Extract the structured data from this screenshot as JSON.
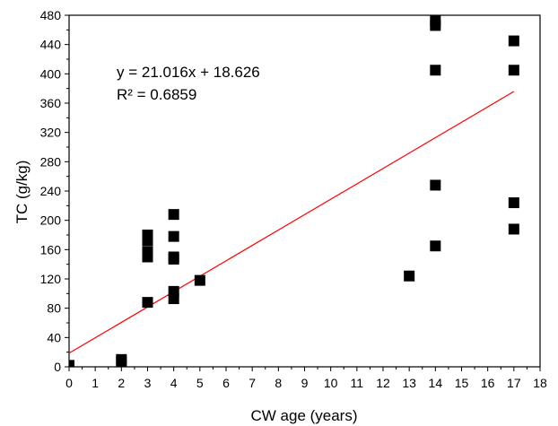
{
  "chart_data": {
    "type": "scatter",
    "title": "",
    "xlabel": "CW age (years)",
    "ylabel": "TC (g/kg)",
    "xlim": [
      0,
      18
    ],
    "ylim": [
      0,
      480
    ],
    "xticks": [
      "0",
      "1",
      "2",
      "3",
      "4",
      "5",
      "6",
      "7",
      "8",
      "9",
      "10",
      "11",
      "12",
      "13",
      "14",
      "15",
      "16",
      "17",
      "18"
    ],
    "yticks": [
      "0",
      "40",
      "80",
      "120",
      "160",
      "200",
      "240",
      "280",
      "320",
      "360",
      "400",
      "440",
      "480"
    ],
    "grid": false,
    "legend": "none",
    "marker": "square",
    "marker_color": "#000000",
    "trendline_color": "#ff0000",
    "points": [
      {
        "x": 0,
        "y": 2
      },
      {
        "x": 2,
        "y": 7
      },
      {
        "x": 2,
        "y": 10
      },
      {
        "x": 3,
        "y": 88
      },
      {
        "x": 3,
        "y": 150
      },
      {
        "x": 3,
        "y": 157
      },
      {
        "x": 3,
        "y": 172
      },
      {
        "x": 3,
        "y": 180
      },
      {
        "x": 4,
        "y": 93
      },
      {
        "x": 4,
        "y": 103
      },
      {
        "x": 4,
        "y": 147
      },
      {
        "x": 4,
        "y": 150
      },
      {
        "x": 4,
        "y": 178
      },
      {
        "x": 4,
        "y": 208
      },
      {
        "x": 5,
        "y": 118
      },
      {
        "x": 13,
        "y": 124
      },
      {
        "x": 14,
        "y": 165
      },
      {
        "x": 14,
        "y": 248
      },
      {
        "x": 14,
        "y": 405
      },
      {
        "x": 14,
        "y": 466
      },
      {
        "x": 14,
        "y": 472
      },
      {
        "x": 17,
        "y": 188
      },
      {
        "x": 17,
        "y": 224
      },
      {
        "x": 17,
        "y": 405
      },
      {
        "x": 17,
        "y": 445
      }
    ],
    "trendline": {
      "slope": 21.016,
      "intercept": 18.626,
      "x_range": [
        0,
        17
      ],
      "equation_label": "y = 21.016x + 18.626",
      "r2_label": "R² = 0.6859"
    }
  }
}
